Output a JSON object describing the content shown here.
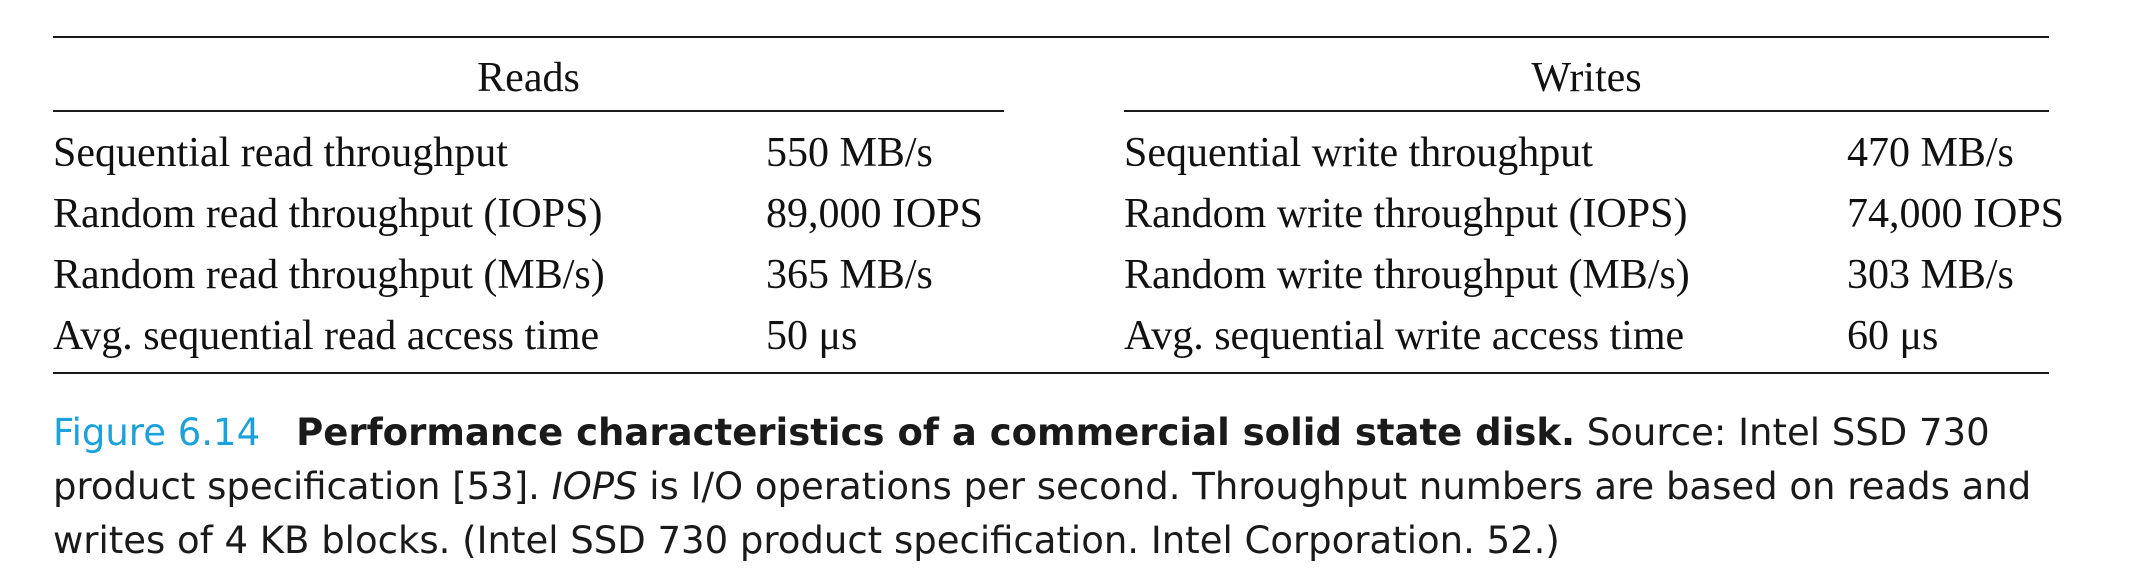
{
  "table": {
    "reads_header": "Reads",
    "writes_header": "Writes",
    "rows": [
      {
        "read_label": "Sequential read throughput",
        "read_value": "550 MB/s",
        "write_label": "Sequential write throughput",
        "write_value": "470 MB/s"
      },
      {
        "read_label": "Random read throughput (IOPS)",
        "read_value": "89,000 IOPS",
        "write_label": "Random write throughput (IOPS)",
        "write_value": "74,000 IOPS"
      },
      {
        "read_label": "Random read throughput (MB/s)",
        "read_value": "365 MB/s",
        "write_label": "Random write throughput (MB/s)",
        "write_value": "303 MB/s"
      },
      {
        "read_label": "Avg. sequential read access time",
        "read_value": "50 μs",
        "write_label": "Avg. sequential write access time",
        "write_value": "60 μs"
      }
    ]
  },
  "caption": {
    "figure_label": "Figure 6.14",
    "title": "Performance characteristics of a commercial solid state disk.",
    "text_1": " Source: Intel SSD 730 product specification [53]. ",
    "iops_term": "IOPS",
    "text_2": " is I/O operations per second. Throughput numbers are based on reads and writes of 4 KB blocks. (Intel SSD 730 product specification. Intel Corporation. 52.)"
  },
  "colors": {
    "figure_label": "#1ba1dc",
    "text": "#111111",
    "rules": "#1a1a1a"
  }
}
